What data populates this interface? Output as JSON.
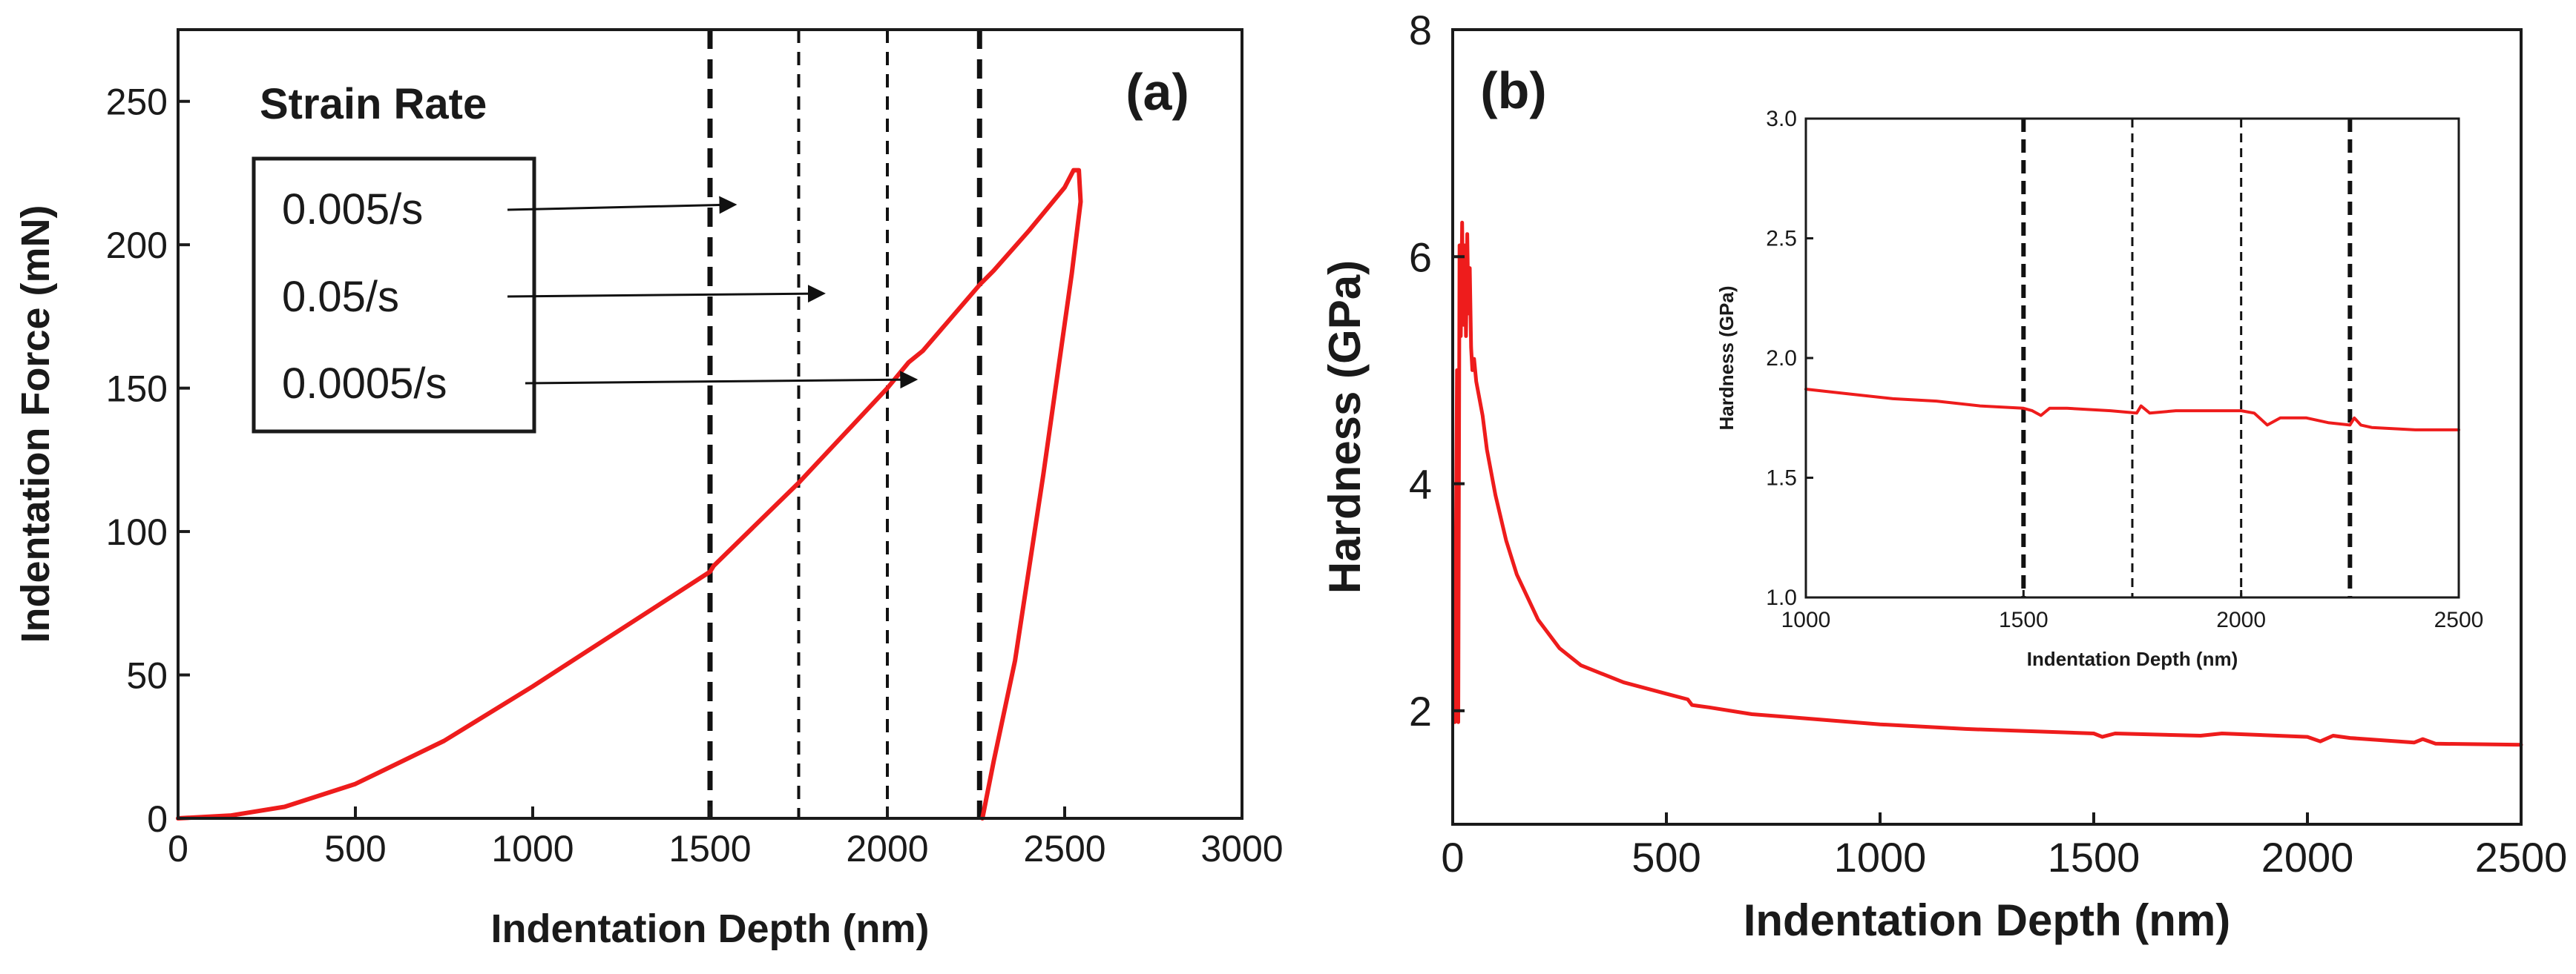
{
  "chart_data": [
    {
      "id": "a",
      "panel_label": "(a)",
      "type": "line",
      "xlabel": "Indentation Depth (nm)",
      "ylabel": "Indentation Force (mN)",
      "xlim": [
        0,
        3000
      ],
      "ylim": [
        0,
        275
      ],
      "xticks": [
        "0",
        "500",
        "1000",
        "1500",
        "2000",
        "2500",
        "3000"
      ],
      "yticks": [
        "0",
        "50",
        "100",
        "150",
        "200",
        "250"
      ],
      "vlines": [
        {
          "x": 1500,
          "style": "bold-dashed"
        },
        {
          "x": 1750,
          "style": "thin-dashed"
        },
        {
          "x": 2000,
          "style": "thin-dashed"
        },
        {
          "x": 2260,
          "style": "bold-dashed"
        }
      ],
      "legend": {
        "title": "Strain Rate",
        "items": [
          {
            "label": "0.005/s",
            "points_to": [
              1570,
              214
            ]
          },
          {
            "label": "0.05/s",
            "points_to": [
              1820,
              183
            ]
          },
          {
            "label": "0.0005/s",
            "points_to": [
              2080,
              153
            ]
          }
        ]
      },
      "series": [
        {
          "name": "loading-unloading",
          "color": "#ee1c1c",
          "x": [
            0,
            150,
            300,
            500,
            750,
            1000,
            1250,
            1500,
            1510,
            1750,
            2000,
            2060,
            2100,
            2260,
            2300,
            2400,
            2500,
            2525,
            2540,
            2545,
            2520,
            2440,
            2360,
            2300,
            2268
          ],
          "y": [
            0,
            1,
            4,
            12,
            27,
            46,
            66,
            86,
            88,
            117,
            150,
            159,
            163,
            186,
            191,
            205,
            220,
            226,
            226,
            215,
            190,
            120,
            55,
            20,
            0
          ]
        }
      ]
    },
    {
      "id": "b",
      "panel_label": "(b)",
      "type": "line",
      "xlabel": "Indentation Depth (nm)",
      "ylabel": "Hardness (GPa)",
      "xlim": [
        0,
        2500
      ],
      "ylim": [
        1,
        8
      ],
      "xticks": [
        "0",
        "500",
        "1000",
        "1500",
        "2000",
        "2500"
      ],
      "yticks": [
        "2",
        "4",
        "6",
        "8"
      ],
      "series": [
        {
          "name": "hardness",
          "color": "#ee1c1c",
          "x": [
            5,
            10,
            13,
            16,
            19,
            22,
            25,
            28,
            31,
            34,
            37,
            40,
            43,
            46,
            50,
            55,
            60,
            70,
            80,
            100,
            125,
            150,
            200,
            250,
            300,
            400,
            500,
            550,
            560,
            600,
            700,
            800,
            1000,
            1200,
            1500,
            1520,
            1550,
            1750,
            1800,
            2000,
            2030,
            2060,
            2100,
            2250,
            2270,
            2300,
            2500
          ],
          "y": [
            1.9,
            5.0,
            1.9,
            6.1,
            5.3,
            6.3,
            5.4,
            6.1,
            5.3,
            6.2,
            5.5,
            5.9,
            5.2,
            5.0,
            5.1,
            4.9,
            4.8,
            4.6,
            4.3,
            3.9,
            3.5,
            3.2,
            2.8,
            2.55,
            2.4,
            2.25,
            2.15,
            2.1,
            2.05,
            2.03,
            1.97,
            1.94,
            1.88,
            1.84,
            1.8,
            1.77,
            1.8,
            1.78,
            1.8,
            1.77,
            1.73,
            1.78,
            1.76,
            1.72,
            1.75,
            1.71,
            1.7
          ]
        }
      ],
      "inset": {
        "type": "line",
        "xlabel": "Indentation Depth (nm)",
        "ylabel": "Hardness (GPa)",
        "xlim": [
          1000,
          2500
        ],
        "ylim": [
          1.0,
          3.0
        ],
        "xticks": [
          "1000",
          "1500",
          "2000",
          "2500"
        ],
        "yticks": [
          "1.0",
          "1.5",
          "2.0",
          "2.5",
          "3.0"
        ],
        "vlines": [
          {
            "x": 1500,
            "style": "bold-dashed"
          },
          {
            "x": 1750,
            "style": "thin-dashed"
          },
          {
            "x": 2000,
            "style": "thin-dashed"
          },
          {
            "x": 2250,
            "style": "bold-dashed"
          }
        ],
        "series": [
          {
            "name": "hardness-zoom",
            "color": "#ee1c1c",
            "x": [
              1000,
              1050,
              1100,
              1200,
              1300,
              1400,
              1500,
              1520,
              1540,
              1560,
              1600,
              1700,
              1760,
              1770,
              1790,
              1850,
              1900,
              2000,
              2030,
              2060,
              2090,
              2150,
              2200,
              2250,
              2260,
              2275,
              2300,
              2400,
              2500
            ],
            "y": [
              1.87,
              1.86,
              1.85,
              1.83,
              1.82,
              1.8,
              1.79,
              1.78,
              1.76,
              1.79,
              1.79,
              1.78,
              1.77,
              1.8,
              1.77,
              1.78,
              1.78,
              1.78,
              1.77,
              1.72,
              1.75,
              1.75,
              1.73,
              1.72,
              1.75,
              1.72,
              1.71,
              1.7,
              1.7
            ]
          }
        ]
      }
    }
  ]
}
